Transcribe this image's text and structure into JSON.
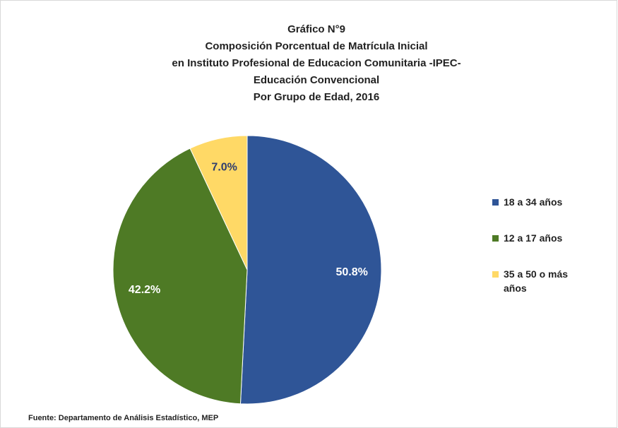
{
  "chart_data": {
    "type": "pie",
    "title": [
      "Gráfico N°9",
      "Composición Porcentual de Matrícula Inicial",
      "en Instituto Profesional de Educacion Comunitaria -IPEC-",
      "Educación Convencional",
      "Por Grupo de Edad, 2016"
    ],
    "categories": [
      "18 a 34 años",
      "12 a 17 años",
      "35 a 50 o más años"
    ],
    "values": [
      50.8,
      42.2,
      7.0
    ],
    "value_labels": [
      "50.8%",
      "42.2%",
      "7.0%"
    ],
    "colors": [
      "#2f5597",
      "#4e7a25",
      "#ffd966"
    ],
    "legend": "right",
    "source": "Fuente: Departamento de Análisis Estadístico, MEP"
  }
}
